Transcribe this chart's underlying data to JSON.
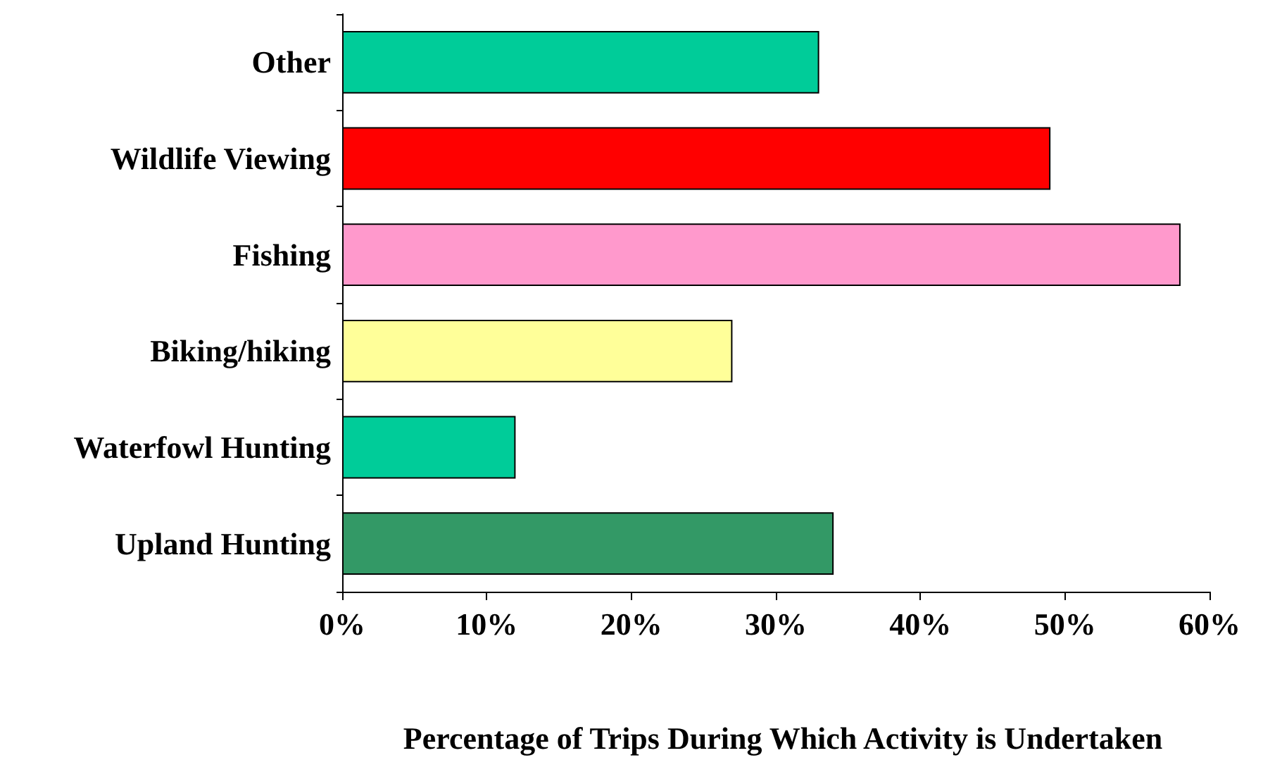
{
  "chart_data": {
    "type": "bar",
    "orientation": "horizontal",
    "xlabel": "Percentage of Trips During Which Activity is Undertaken",
    "categories": [
      "Other",
      "Wildlife Viewing",
      "Fishing",
      "Biking/hiking",
      "Waterfowl Hunting",
      "Upland Hunting"
    ],
    "values": [
      33,
      49,
      58,
      27,
      12,
      34
    ],
    "colors": [
      "#00cc99",
      "#ff0000",
      "#ff99cc",
      "#ffff99",
      "#00cc99",
      "#339966"
    ],
    "xlim": [
      0,
      60
    ],
    "xticks": [
      {
        "value": 0,
        "label": "0%"
      },
      {
        "value": 10,
        "label": "10%"
      },
      {
        "value": 20,
        "label": "20%"
      },
      {
        "value": 30,
        "label": "30%"
      },
      {
        "value": 40,
        "label": "40%"
      },
      {
        "value": 50,
        "label": "50%"
      },
      {
        "value": 60,
        "label": "60%"
      }
    ],
    "grid": false
  }
}
